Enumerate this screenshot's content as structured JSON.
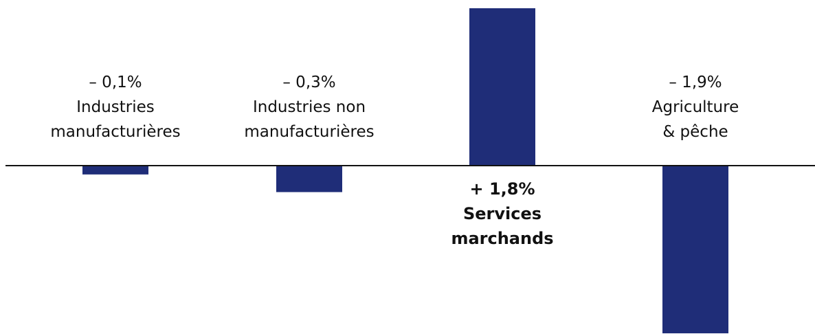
{
  "chart_data": {
    "type": "bar",
    "categories": [
      "Industries manufacturières",
      "Industries non manufacturières",
      "Services marchands",
      "Agriculture & pêche"
    ],
    "values": [
      -0.1,
      -0.3,
      1.8,
      -1.9
    ],
    "ylim": [
      -1.9,
      1.8
    ],
    "grid": false,
    "bar_color": "#1f2d78",
    "baseline_color": "#111111",
    "annotations": [
      {
        "lines": [
          "– 0,1%",
          "Industries",
          "manufacturières"
        ],
        "bold": false
      },
      {
        "lines": [
          "– 0,3%",
          "Industries non",
          "manufacturières"
        ],
        "bold": false
      },
      {
        "lines": [
          "+ 1,8%",
          "Services",
          "marchands"
        ],
        "bold": true
      },
      {
        "lines": [
          "– 1,9%",
          "Agriculture",
          "& pêche"
        ],
        "bold": false
      }
    ]
  }
}
